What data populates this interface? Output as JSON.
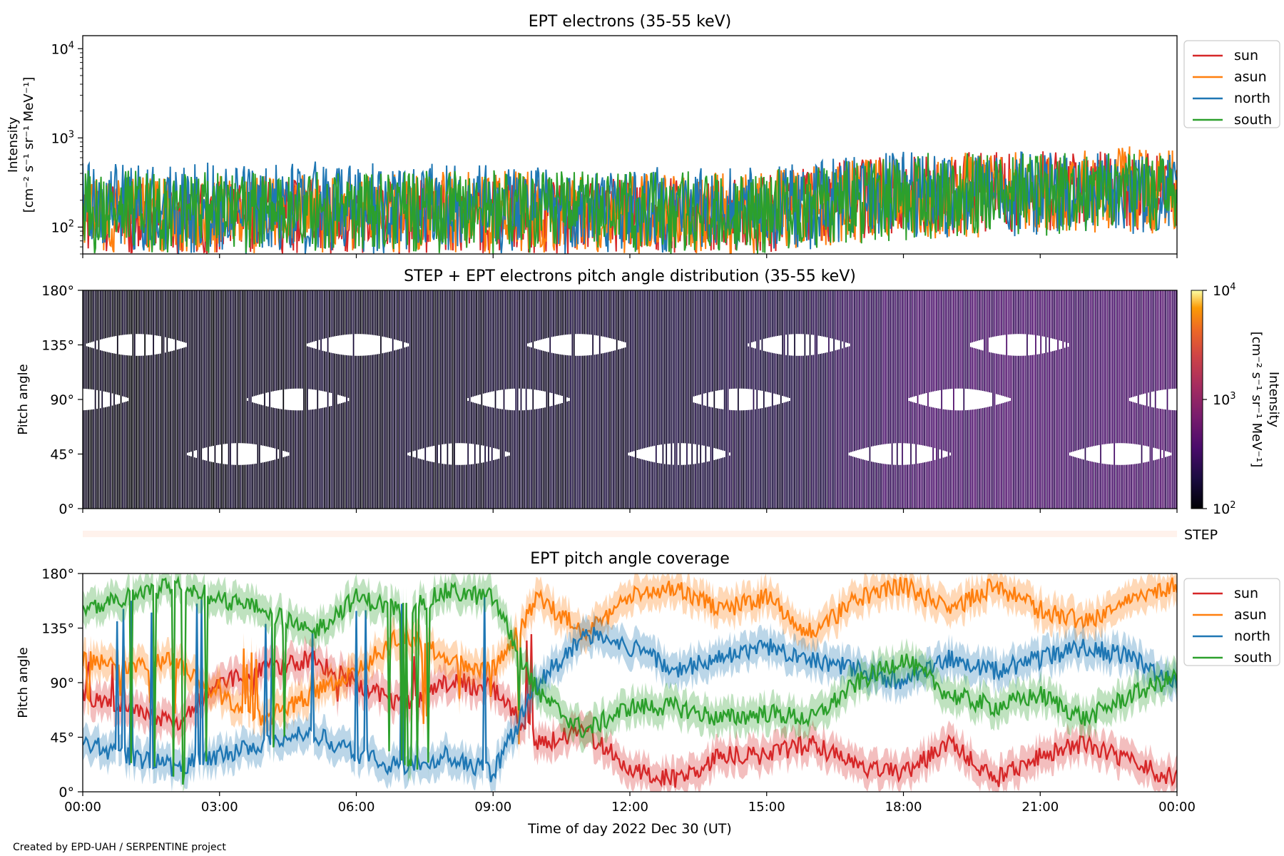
{
  "figure": {
    "footer": "Created by EPD-UAH / SERPENTINE project",
    "xlabel": "Time of day 2022 Dec 30 (UT)",
    "xticks": [
      "00:00",
      "03:00",
      "06:00",
      "09:00",
      "12:00",
      "15:00",
      "18:00",
      "21:00",
      "00:00"
    ]
  },
  "colors": {
    "sun": "#d62728",
    "asun": "#ff7f0e",
    "north": "#1f77b4",
    "south": "#2ca02c"
  },
  "chart_data": [
    {
      "type": "line",
      "title": "EPT electrons (35-55 keV)",
      "ylabel": "Intensity",
      "yunit": "[cm⁻² s⁻¹ sr⁻¹ MeV⁻¹]",
      "yscale": "log",
      "ylim": [
        50,
        14000
      ],
      "yticks": [
        {
          "base": "10",
          "exp": "2"
        },
        {
          "base": "10",
          "exp": "3"
        },
        {
          "base": "10",
          "exp": "4"
        }
      ],
      "x_range_hours": [
        0,
        24
      ],
      "legend": "top-right outside",
      "series": [
        {
          "name": "sun",
          "envelope": {
            "x": [
              0,
              3,
              6,
              9,
              12,
              15,
              16.5,
              18,
              21,
              24
            ],
            "min": [
              50,
              50,
              50,
              50,
              50,
              50,
              70,
              80,
              90,
              90
            ],
            "max": [
              300,
              330,
              340,
              350,
              360,
              380,
              550,
              650,
              750,
              650
            ]
          }
        },
        {
          "name": "asun",
          "envelope": {
            "x": [
              0,
              3,
              6,
              9,
              12,
              15,
              16.5,
              18,
              21,
              24
            ],
            "min": [
              50,
              50,
              50,
              50,
              50,
              50,
              60,
              70,
              80,
              80
            ],
            "max": [
              350,
              380,
              400,
              430,
              400,
              420,
              550,
              650,
              720,
              900
            ]
          }
        },
        {
          "name": "north",
          "envelope": {
            "x": [
              0,
              3,
              6,
              9,
              12,
              15,
              16.5,
              18,
              21,
              24
            ],
            "min": [
              50,
              50,
              50,
              50,
              50,
              50,
              60,
              70,
              80,
              80
            ],
            "max": [
              520,
              540,
              560,
              500,
              480,
              460,
              600,
              700,
              700,
              650
            ]
          }
        },
        {
          "name": "south",
          "envelope": {
            "x": [
              0,
              3,
              6,
              9,
              12,
              15,
              16.5,
              18,
              21,
              24
            ],
            "min": [
              50,
              50,
              50,
              50,
              50,
              50,
              60,
              70,
              80,
              80
            ],
            "max": [
              450,
              420,
              430,
              440,
              420,
              430,
              550,
              680,
              700,
              650
            ]
          }
        }
      ]
    },
    {
      "type": "heatmap",
      "title": "STEP + EPT electrons pitch angle distribution (35-55 keV)",
      "ylabel": "Pitch angle",
      "yticks": [
        "0°",
        "45°",
        "90°",
        "135°",
        "180°"
      ],
      "ylim": [
        0,
        180
      ],
      "colorbar": {
        "label": "Intensity",
        "unit": "[cm⁻² s⁻¹ sr⁻¹ MeV⁻¹]",
        "scale": "log",
        "range": [
          100,
          10000
        ],
        "ticks": [
          {
            "base": "10",
            "exp": "2"
          },
          {
            "base": "10",
            "exp": "3"
          },
          {
            "base": "10",
            "exp": "4"
          }
        ]
      },
      "gap_angles_deg": [
        135,
        90,
        45
      ],
      "intensity_trend": {
        "x": [
          0,
          12,
          16,
          18,
          24
        ],
        "value": [
          120,
          160,
          200,
          320,
          330
        ]
      }
    },
    {
      "type": "bar",
      "label": "STEP",
      "note": "STEP coverage strip (empty)"
    },
    {
      "type": "line",
      "title": "EPT pitch angle coverage",
      "ylabel": "Pitch angle",
      "yticks": [
        "0°",
        "45°",
        "90°",
        "135°",
        "180°"
      ],
      "ylim": [
        0,
        180
      ],
      "legend": "top-right outside",
      "series": [
        {
          "name": "sun",
          "x": [
            0,
            1,
            2,
            3,
            4,
            5,
            6,
            7,
            8,
            9,
            10,
            11,
            12,
            13,
            14,
            15,
            16,
            17,
            18,
            19,
            20,
            21,
            22,
            23,
            24
          ],
          "y": [
            80,
            70,
            55,
            90,
            100,
            110,
            90,
            70,
            90,
            85,
            40,
            50,
            20,
            10,
            30,
            30,
            40,
            20,
            15,
            40,
            10,
            30,
            40,
            25,
            10
          ]
        },
        {
          "name": "asun",
          "x": [
            0,
            1,
            2,
            3,
            4,
            5,
            6,
            7,
            8,
            9,
            10,
            11,
            12,
            13,
            14,
            15,
            16,
            17,
            18,
            19,
            20,
            21,
            22,
            23,
            24
          ],
          "y": [
            110,
            100,
            110,
            80,
            60,
            80,
            100,
            130,
            110,
            100,
            160,
            130,
            160,
            170,
            150,
            160,
            130,
            160,
            170,
            150,
            170,
            150,
            140,
            160,
            170
          ]
        },
        {
          "name": "north",
          "x": [
            0,
            1,
            2,
            3,
            4,
            5,
            6,
            7,
            8,
            9,
            10,
            11,
            12,
            13,
            14,
            15,
            16,
            17,
            18,
            19,
            20,
            21,
            22,
            23,
            24
          ],
          "y": [
            40,
            30,
            20,
            30,
            40,
            50,
            30,
            20,
            30,
            15,
            90,
            130,
            120,
            100,
            110,
            120,
            110,
            100,
            90,
            110,
            100,
            110,
            120,
            110,
            90
          ]
        },
        {
          "name": "south",
          "x": [
            0,
            1,
            2,
            3,
            4,
            5,
            6,
            7,
            8,
            9,
            10,
            11,
            12,
            13,
            14,
            15,
            16,
            17,
            18,
            19,
            20,
            21,
            22,
            23,
            24
          ],
          "y": [
            150,
            160,
            170,
            160,
            150,
            130,
            160,
            150,
            165,
            160,
            80,
            50,
            70,
            70,
            60,
            65,
            60,
            90,
            110,
            80,
            70,
            80,
            60,
            80,
            95
          ]
        }
      ]
    }
  ]
}
